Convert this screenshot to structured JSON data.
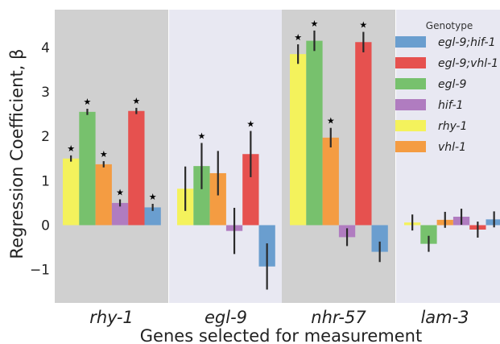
{
  "chart_data": {
    "type": "bar",
    "xlabel": "Genes selected for measurement",
    "ylabel": "Regression Coefficient, β",
    "ylim": [
      -1.75,
      4.85
    ],
    "yticks": [
      -1,
      0,
      1,
      2,
      3,
      4
    ],
    "categories": [
      "rhy-1",
      "egl-9",
      "nhr-57",
      "lam-3"
    ],
    "category_bands": [
      "#d0d0d0",
      "#e8e8f2",
      "#d0d0d0",
      "#e8e8f2"
    ],
    "legend_title": "Genotype",
    "legend_position": "top-right",
    "series": [
      {
        "name": "rhy-1",
        "color": "#f4f25c",
        "values": [
          1.5,
          0.82,
          3.85,
          0.06
        ],
        "err": [
          0.07,
          0.5,
          0.22,
          0.18
        ],
        "sig": [
          true,
          false,
          true,
          false
        ]
      },
      {
        "name": "egl-9",
        "color": "#77c16d",
        "values": [
          2.55,
          1.33,
          4.15,
          -0.42
        ],
        "err": [
          0.07,
          0.52,
          0.23,
          0.18
        ],
        "sig": [
          true,
          true,
          true,
          false
        ]
      },
      {
        "name": "vhl-1",
        "color": "#f49c42",
        "values": [
          1.37,
          1.17,
          1.97,
          0.12
        ],
        "err": [
          0.07,
          0.5,
          0.22,
          0.18
        ],
        "sig": [
          true,
          false,
          true,
          false
        ]
      },
      {
        "name": "hif-1",
        "color": "#b07cc0",
        "values": [
          0.5,
          -0.13,
          -0.27,
          0.19
        ],
        "err": [
          0.08,
          0.52,
          0.2,
          0.18
        ],
        "sig": [
          true,
          false,
          false,
          false
        ]
      },
      {
        "name": "egl-9;vhl-1",
        "color": "#e6514f",
        "values": [
          2.57,
          1.6,
          4.12,
          -0.1
        ],
        "err": [
          0.07,
          0.52,
          0.23,
          0.18
        ],
        "sig": [
          true,
          true,
          true,
          false
        ]
      },
      {
        "name": "egl-9;hif-1",
        "color": "#6a9ecf",
        "values": [
          0.4,
          -0.93,
          -0.6,
          0.13
        ],
        "err": [
          0.08,
          0.52,
          0.23,
          0.18
        ],
        "sig": [
          true,
          false,
          false,
          false
        ]
      }
    ],
    "legend_order": [
      "egl-9;hif-1",
      "egl-9;vhl-1",
      "egl-9",
      "hif-1",
      "rhy-1",
      "vhl-1"
    ],
    "significance_marker": "★",
    "grid": false
  }
}
